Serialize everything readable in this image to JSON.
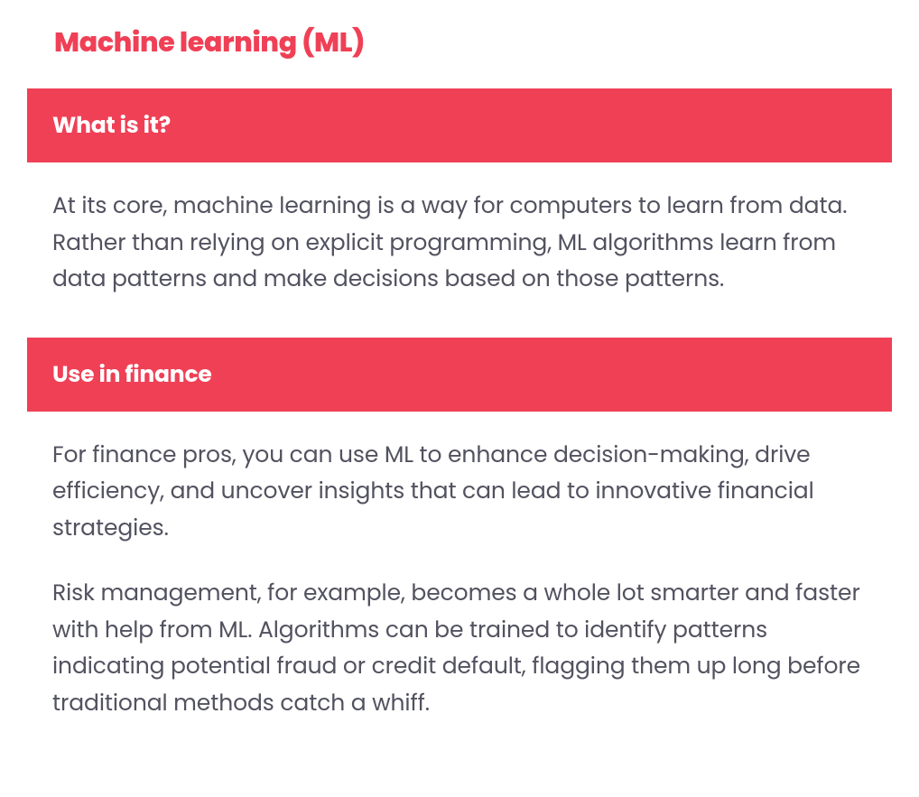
{
  "title": "Machine learning (ML)",
  "colors": {
    "accent": "#ef4056",
    "text": "#525260",
    "header_text": "#ffffff",
    "background": "#ffffff"
  },
  "typography": {
    "title_fontsize": 30,
    "title_weight": 800,
    "header_fontsize": 25,
    "header_weight": 700,
    "body_fontsize": 25,
    "body_weight": 400,
    "line_height": 1.62
  },
  "sections": [
    {
      "header": "What is it?",
      "paragraphs": [
        "At its core, machine learning is a way for computers to learn from data. Rather than relying on explicit programming, ML algorithms learn from data patterns and make decisions based on those patterns."
      ]
    },
    {
      "header": "Use in finance",
      "paragraphs": [
        "For finance pros, you can use ML to enhance decision-making, drive efficiency, and uncover insights that can lead to innovative financial strategies.",
        "Risk management, for example, becomes a whole lot smarter and faster with help from ML. Algorithms can be trained to identify patterns indicating potential fraud or credit default, flagging them up long before traditional methods catch a whiff."
      ]
    }
  ]
}
